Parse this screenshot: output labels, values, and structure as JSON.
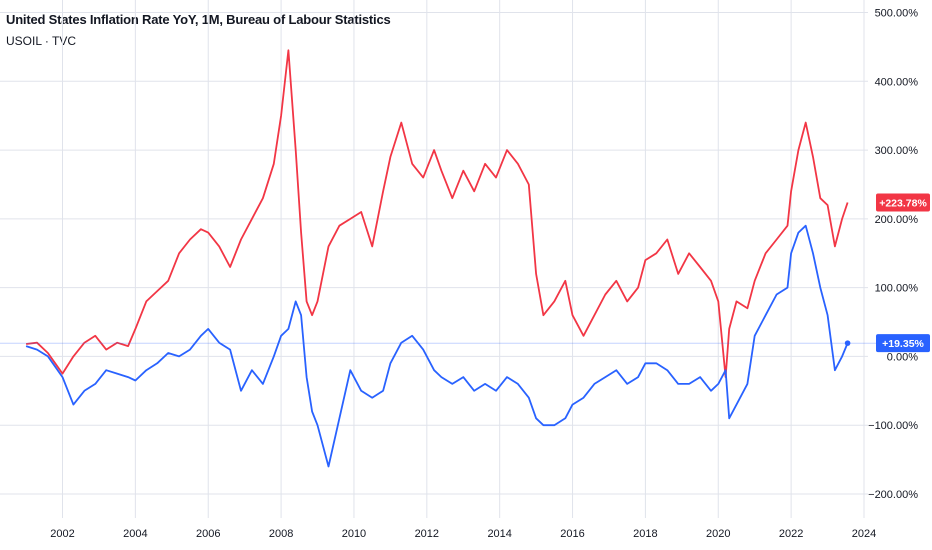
{
  "header": {
    "title": "United States Inflation Rate YoY, 1M, Bureau of Labour Statistics",
    "subtitle": "USOIL · TVC"
  },
  "colors": {
    "red_series": "#f23645",
    "blue_series": "#2962ff",
    "grid": "#e0e3eb",
    "axis_text": "#131722"
  },
  "chart_data": {
    "type": "line",
    "title": "United States Inflation Rate YoY, 1M, Bureau of Labour Statistics",
    "subtitle": "USOIL · TVC",
    "y_unit": "%",
    "ylim": [
      -210,
      510
    ],
    "xlim": [
      2000.9,
      2024.3
    ],
    "grid": true,
    "x_ticks": [
      "2002",
      "2004",
      "2006",
      "2008",
      "2010",
      "2012",
      "2014",
      "2016",
      "2018",
      "2020",
      "2022",
      "2024"
    ],
    "x_tick_values": [
      2002,
      2004,
      2006,
      2008,
      2010,
      2012,
      2014,
      2016,
      2018,
      2020,
      2022,
      2024
    ],
    "y_ticks": [
      "500.00%",
      "400.00%",
      "300.00%",
      "200.00%",
      "100.00%",
      "0.00%",
      "−100.00%",
      "−200.00%"
    ],
    "y_tick_values": [
      500,
      400,
      300,
      200,
      100,
      0,
      -100,
      -200
    ],
    "price_labels": [
      {
        "series": 0,
        "value": 223.78,
        "text": "+223.78%"
      },
      {
        "series": 1,
        "value": 19.35,
        "text": "+19.35%"
      }
    ],
    "series": [
      {
        "color": "#f23645",
        "x": [
          2001.0,
          2001.3,
          2001.6,
          2001.8,
          2002.0,
          2002.3,
          2002.6,
          2002.9,
          2003.2,
          2003.5,
          2003.8,
          2004.0,
          2004.3,
          2004.6,
          2004.9,
          2005.2,
          2005.5,
          2005.8,
          2006.0,
          2006.3,
          2006.6,
          2006.9,
          2007.2,
          2007.5,
          2007.8,
          2008.0,
          2008.2,
          2008.4,
          2008.55,
          2008.7,
          2008.85,
          2009.0,
          2009.3,
          2009.6,
          2009.9,
          2010.2,
          2010.5,
          2010.8,
          2011.0,
          2011.3,
          2011.6,
          2011.9,
          2012.2,
          2012.4,
          2012.7,
          2013.0,
          2013.3,
          2013.6,
          2013.9,
          2014.2,
          2014.5,
          2014.8,
          2015.0,
          2015.2,
          2015.5,
          2015.8,
          2016.0,
          2016.3,
          2016.6,
          2016.9,
          2017.2,
          2017.5,
          2017.8,
          2018.0,
          2018.3,
          2018.6,
          2018.9,
          2019.2,
          2019.5,
          2019.8,
          2020.0,
          2020.2,
          2020.3,
          2020.5,
          2020.8,
          2021.0,
          2021.3,
          2021.6,
          2021.9,
          2022.0,
          2022.2,
          2022.4,
          2022.6,
          2022.8,
          2023.0,
          2023.2,
          2023.4,
          2023.55
        ],
        "y": [
          18,
          20,
          5,
          -10,
          -25,
          0,
          20,
          30,
          10,
          20,
          15,
          40,
          80,
          95,
          110,
          150,
          170,
          185,
          180,
          160,
          130,
          170,
          200,
          230,
          280,
          350,
          445,
          300,
          180,
          80,
          60,
          80,
          160,
          190,
          200,
          210,
          160,
          240,
          290,
          340,
          280,
          260,
          300,
          270,
          230,
          270,
          240,
          280,
          260,
          300,
          280,
          250,
          120,
          60,
          80,
          110,
          60,
          30,
          60,
          90,
          110,
          80,
          100,
          140,
          150,
          170,
          120,
          150,
          130,
          110,
          80,
          -30,
          40,
          80,
          70,
          110,
          150,
          170,
          190,
          240,
          300,
          340,
          290,
          230,
          220,
          160,
          200,
          223.78
        ]
      },
      {
        "color": "#2962ff",
        "x": [
          2001.0,
          2001.3,
          2001.6,
          2001.8,
          2002.0,
          2002.3,
          2002.6,
          2002.9,
          2003.2,
          2003.5,
          2003.8,
          2004.0,
          2004.3,
          2004.6,
          2004.9,
          2005.2,
          2005.5,
          2005.8,
          2006.0,
          2006.3,
          2006.6,
          2006.9,
          2007.2,
          2007.5,
          2007.8,
          2008.0,
          2008.2,
          2008.4,
          2008.55,
          2008.7,
          2008.85,
          2009.0,
          2009.3,
          2009.6,
          2009.9,
          2010.2,
          2010.5,
          2010.8,
          2011.0,
          2011.3,
          2011.6,
          2011.9,
          2012.2,
          2012.4,
          2012.7,
          2013.0,
          2013.3,
          2013.6,
          2013.9,
          2014.2,
          2014.5,
          2014.8,
          2015.0,
          2015.2,
          2015.5,
          2015.8,
          2016.0,
          2016.3,
          2016.6,
          2016.9,
          2017.2,
          2017.5,
          2017.8,
          2018.0,
          2018.3,
          2018.6,
          2018.9,
          2019.2,
          2019.5,
          2019.8,
          2020.0,
          2020.2,
          2020.3,
          2020.5,
          2020.8,
          2021.0,
          2021.3,
          2021.6,
          2021.9,
          2022.0,
          2022.2,
          2022.4,
          2022.6,
          2022.8,
          2023.0,
          2023.2,
          2023.4,
          2023.55
        ],
        "y": [
          15,
          10,
          0,
          -15,
          -30,
          -70,
          -50,
          -40,
          -20,
          -25,
          -30,
          -35,
          -20,
          -10,
          5,
          0,
          10,
          30,
          40,
          20,
          10,
          -50,
          -20,
          -40,
          0,
          30,
          40,
          80,
          60,
          -30,
          -80,
          -100,
          -160,
          -90,
          -20,
          -50,
          -60,
          -50,
          -10,
          20,
          30,
          10,
          -20,
          -30,
          -40,
          -30,
          -50,
          -40,
          -50,
          -30,
          -40,
          -60,
          -90,
          -100,
          -100,
          -90,
          -70,
          -60,
          -40,
          -30,
          -20,
          -40,
          -30,
          -10,
          -10,
          -20,
          -40,
          -40,
          -30,
          -50,
          -40,
          -20,
          -90,
          -70,
          -40,
          30,
          60,
          90,
          100,
          150,
          180,
          190,
          150,
          100,
          60,
          -20,
          0,
          19.35
        ]
      }
    ]
  }
}
